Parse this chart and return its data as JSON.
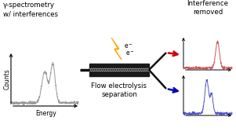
{
  "title_left": "γ-spectrometry\nw/ interferences",
  "label_center": "Flow electrolysis\nseparation",
  "label_right": "Interference\nremoved",
  "xlabel_left": "Energy",
  "ylabel_left": "Counts",
  "bg_color": "#ffffff",
  "gray_color": "#999999",
  "red_color": "#cc5555",
  "blue_color": "#5555cc",
  "arrow_red": "#cc0000",
  "arrow_blue": "#0000bb",
  "bolt_fill": "#FFD700",
  "bolt_edge": "#FFA500",
  "pipe_color": "#111111",
  "cell_dark": "#1a1a1a",
  "cell_dot": "#888888"
}
